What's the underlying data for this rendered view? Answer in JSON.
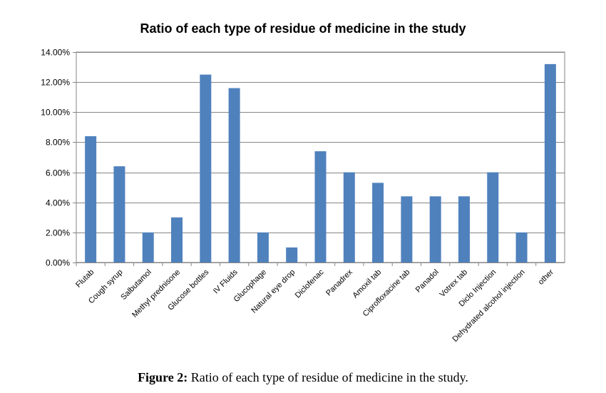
{
  "chart_data": {
    "type": "bar",
    "title": "Ratio of each type of residue of medicine in the study",
    "categories": [
      "Flutab",
      "Cough syrup",
      "Salbutamol",
      "Methyl prednisone",
      "Glucose bottles",
      "IV Fluids",
      "Glucophage",
      "Natural eye drop",
      "Diclofenac",
      "Panadrex",
      "Amoxil tab",
      "Ciprofloxacine tab",
      "Panadol",
      "Votrex tab",
      "Diclo Injection",
      "Dehydrated alcohol injection",
      "other"
    ],
    "values": [
      8.4,
      6.4,
      2.0,
      3.0,
      12.5,
      11.6,
      2.0,
      1.0,
      7.4,
      6.0,
      5.3,
      4.4,
      4.4,
      4.4,
      6.0,
      2.0,
      13.2
    ],
    "y_ticks": [
      "0.00%",
      "2.00%",
      "4.00%",
      "6.00%",
      "8.00%",
      "10.00%",
      "12.00%",
      "14.00%"
    ],
    "ylim": [
      0,
      14
    ],
    "y_unit": "percent",
    "grid": true,
    "bar_color": "#4f81bd"
  },
  "caption": {
    "label": "Figure 2:",
    "text": " Ratio of each type of residue of medicine in the study."
  }
}
